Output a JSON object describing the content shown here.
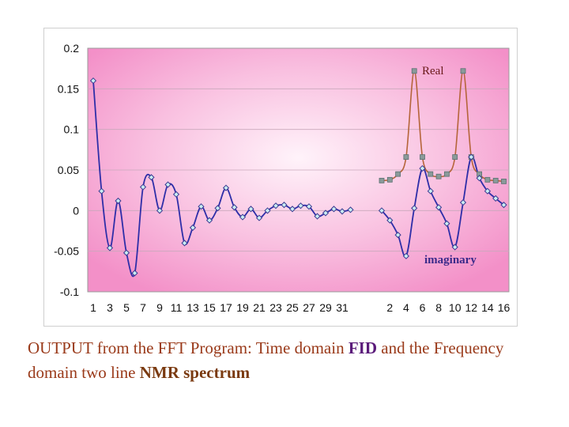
{
  "chart_data": {
    "type": "line",
    "ylim": [
      -0.1,
      0.2
    ],
    "y_ticks": [
      "0.2",
      "0.15",
      "0.1",
      "0.05",
      "0",
      "-0.05",
      "-0.1"
    ],
    "grid": true,
    "colors": {
      "background": "#f59acd",
      "real": "#b5653a",
      "imaginary": "#2e2ea8",
      "real_marker": "#8a9a9a",
      "imag_marker": "#c8ecf2"
    },
    "time_domain": {
      "x_ticks": [
        "1",
        "3",
        "5",
        "7",
        "9",
        "11",
        "13",
        "15",
        "17",
        "19",
        "21",
        "23",
        "25",
        "27",
        "29",
        "31"
      ],
      "values": [
        0.16,
        0.024,
        -0.046,
        0.012,
        -0.052,
        -0.077,
        0.029,
        0.041,
        0.0,
        0.032,
        0.02,
        -0.04,
        -0.021,
        0.005,
        -0.012,
        0.003,
        0.028,
        0.004,
        -0.008,
        0.002,
        -0.009,
        0.0,
        0.006,
        0.007,
        0.002,
        0.006,
        0.005,
        -0.007,
        -0.003,
        0.002,
        -0.001,
        0.001
      ]
    },
    "frequency_domain": {
      "x_ticks": [
        "2",
        "4",
        "6",
        "8",
        "10",
        "12",
        "14",
        "16"
      ],
      "series": [
        {
          "name": "Real",
          "values": [
            0.037,
            0.038,
            0.045,
            0.066,
            0.172,
            0.066,
            0.045,
            0.042,
            0.045,
            0.066,
            0.172,
            0.066,
            0.045,
            0.038,
            0.037,
            0.036
          ]
        },
        {
          "name": "imaginary",
          "values": [
            0.0,
            -0.012,
            -0.03,
            -0.056,
            0.003,
            0.052,
            0.024,
            0.004,
            -0.016,
            -0.045,
            0.01,
            0.066,
            0.04,
            0.024,
            0.015,
            0.007
          ]
        }
      ]
    }
  },
  "caption": {
    "part1": "OUTPUT from the FFT Program:  Time domain ",
    "fid": "FID",
    "part2": " and the Frequency domain two line ",
    "nmr": "NMR spectrum"
  }
}
